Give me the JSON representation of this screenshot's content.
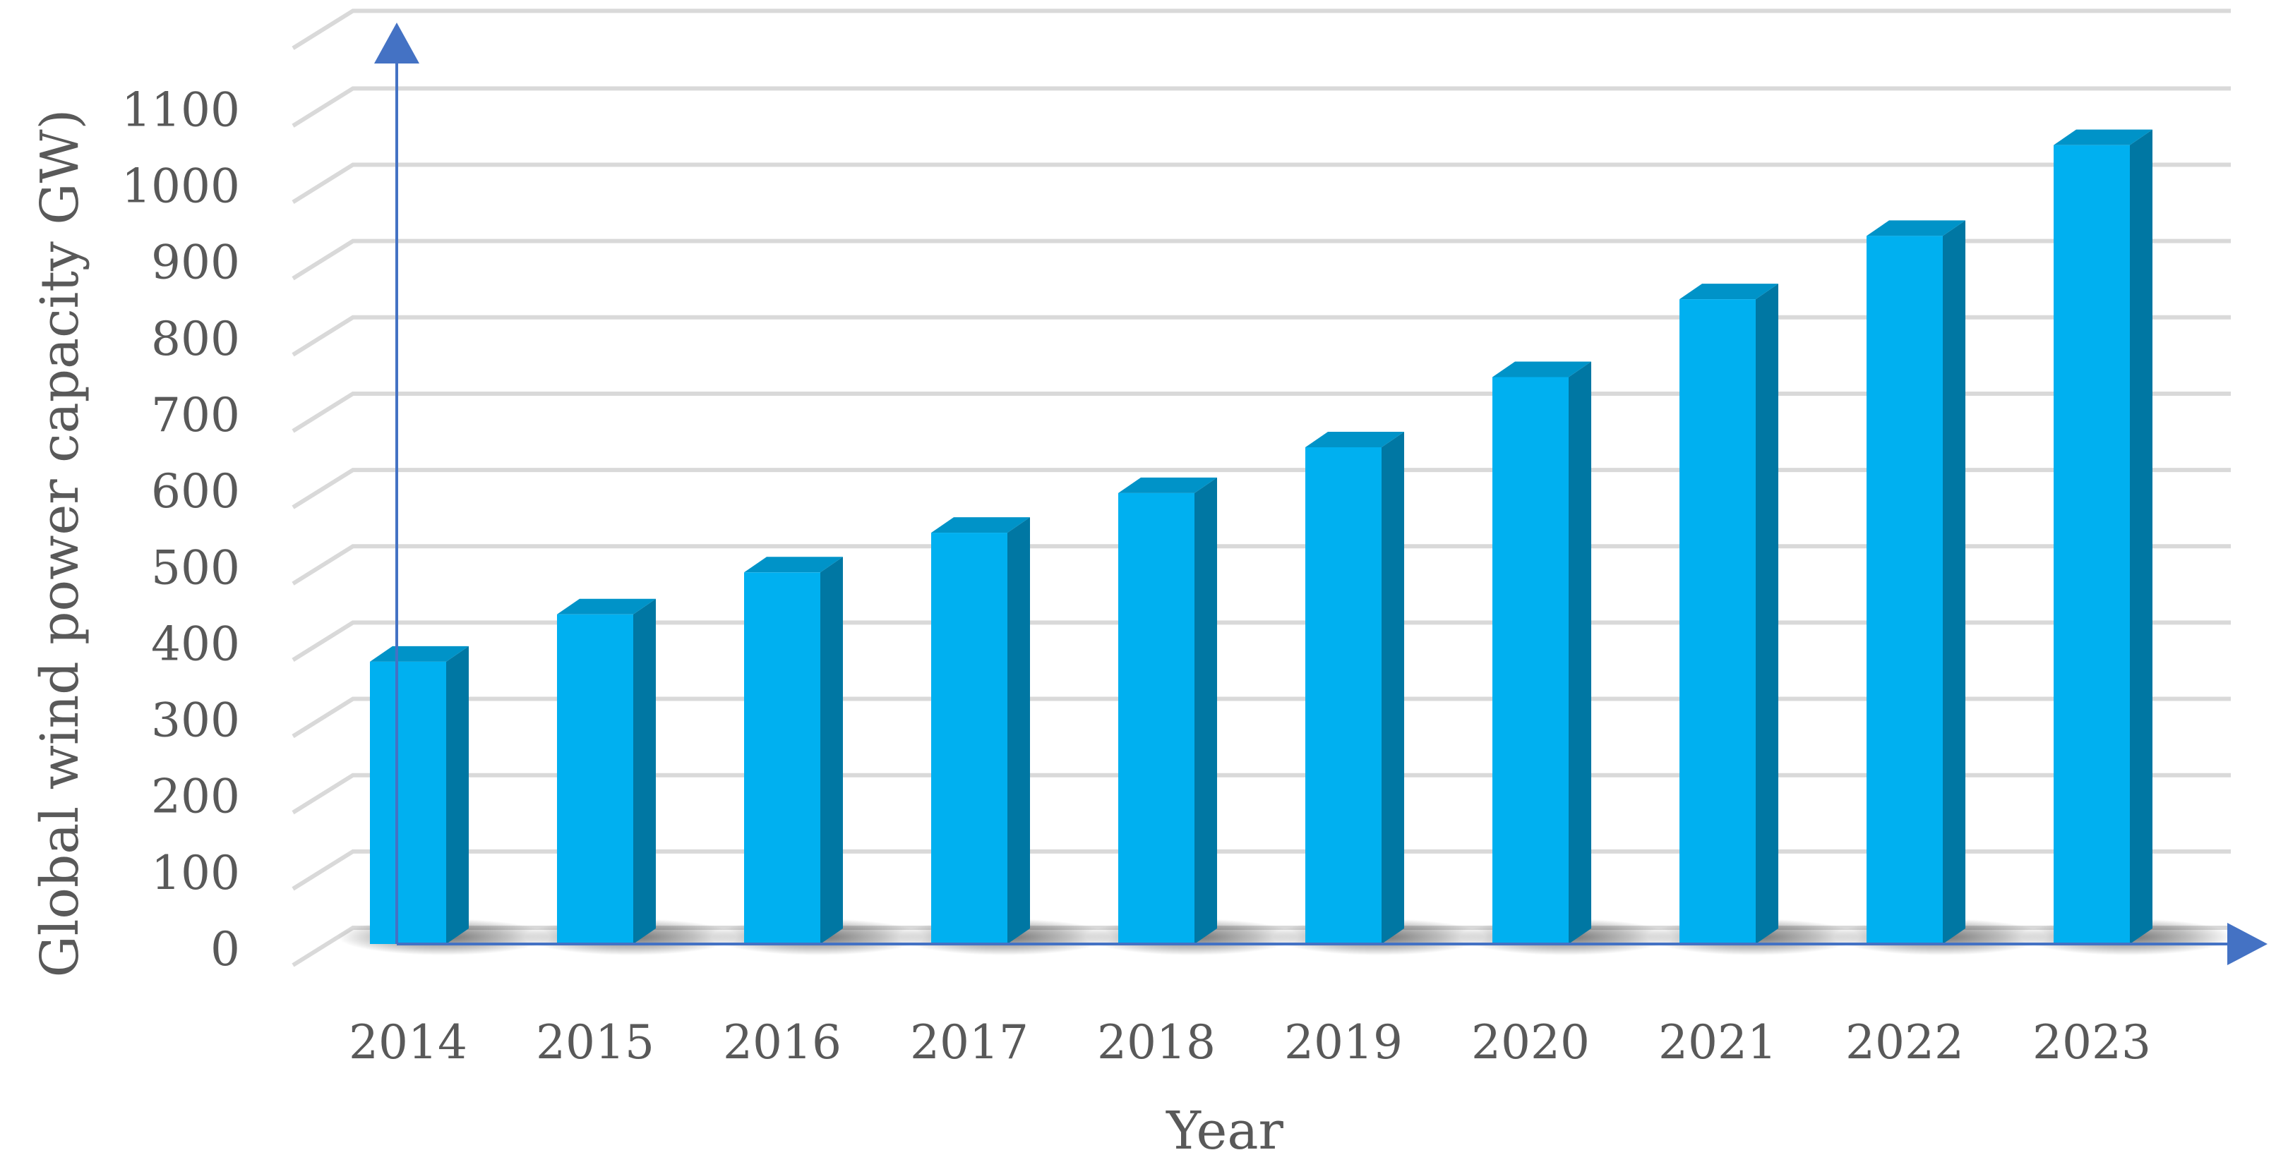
{
  "chart_data": {
    "type": "bar",
    "style": "3d-column",
    "title": "",
    "xlabel": "Year",
    "ylabel": "Global wind power capacity GW)",
    "categories": [
      "2014",
      "2015",
      "2016",
      "2017",
      "2018",
      "2019",
      "2020",
      "2021",
      "2022",
      "2023"
    ],
    "values": [
      370,
      432,
      487,
      539,
      591,
      651,
      743,
      845,
      928,
      1047
    ],
    "ylim": [
      0,
      1100
    ],
    "yticks": [
      0,
      100,
      200,
      300,
      400,
      500,
      600,
      700,
      800,
      900,
      1000,
      1100
    ],
    "grid": true,
    "legend": "none",
    "colors": {
      "bar_front": "#00B0F0",
      "bar_side": "#0077A3",
      "bar_top": "#0093C8",
      "gridline": "#D9D9D9",
      "axis_arrow": "#4472C4",
      "text": "#595959"
    }
  }
}
